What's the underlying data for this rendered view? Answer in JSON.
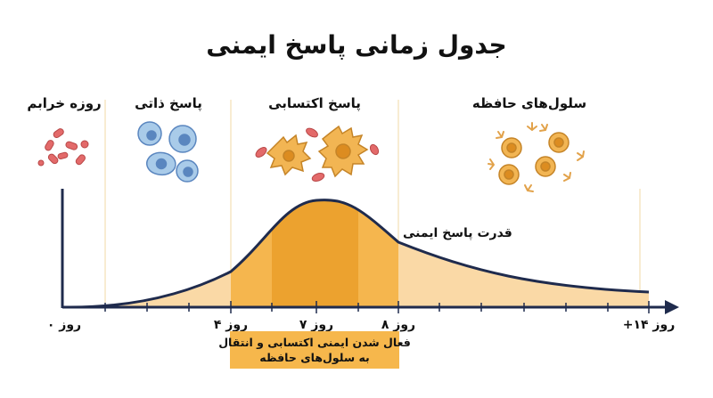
{
  "title": "جدول زمانی پاسخ ایمنی",
  "phases": [
    {
      "label": "روزه خرابم"
    },
    {
      "label": "پاسخ ذاتی"
    },
    {
      "label": "پاسخ اکتسابی"
    },
    {
      "label": "سلول‌های حافظه"
    }
  ],
  "curve_label": "قدرت پاسخ ایمنی",
  "axis_labels": {
    "day0": "روز ۰",
    "day4": "روز ۴",
    "day7": "روز ۷",
    "day8": "روز ۸",
    "day14": "روز ۱۴+"
  },
  "note": {
    "line1": "فعال شدن ایمنی اکتسابی و انتقال",
    "line2": "به سلول‌های حافظه"
  },
  "colors": {
    "axis": "#1f2b4d",
    "curve_fill_light": "#fad9a6",
    "curve_fill_mid": "#f5b64e",
    "curve_fill_dark": "#eca22f",
    "divider": "#f1d9a6",
    "pathogen": "#e36a6a",
    "innate_cell": "#a9cbe9",
    "innate_nucleus": "#5a86bf",
    "adaptive_cell": "#f2b553",
    "antibody": "#e2a24a",
    "note_box": "#f6b74c"
  },
  "icons": [
    "bacteria-icon",
    "innate-cell-icon",
    "adaptive-cell-icon",
    "memory-cell-icon",
    "antibody-icon"
  ]
}
